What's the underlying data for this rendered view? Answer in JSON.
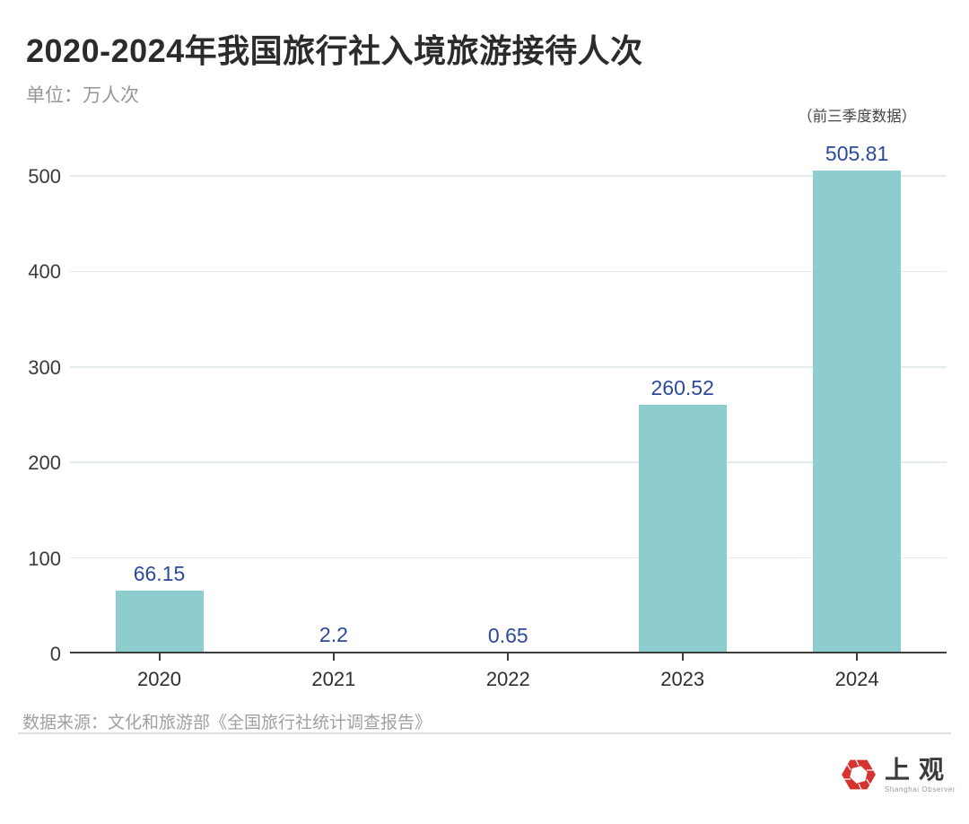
{
  "header": {
    "title": "2020-2024年我国旅行社入境旅游接待人次",
    "unit": "单位：万人次"
  },
  "chart_data": {
    "type": "bar",
    "title": "2020-2024年我国旅行社入境旅游接待人次",
    "unit": "万人次",
    "categories": [
      "2020",
      "2021",
      "2022",
      "2023",
      "2024"
    ],
    "values": [
      66.15,
      2.2,
      0.65,
      260.52,
      505.81
    ],
    "value_labels": [
      "66.15",
      "2.2",
      "0.65",
      "260.52",
      "505.81"
    ],
    "annotation": "（前三季度数据）",
    "annotation_target_index": 4,
    "xlabel": "",
    "ylabel": "万人次",
    "ylim": [
      0,
      500
    ],
    "yticks": [
      0,
      100,
      200,
      300,
      400,
      500
    ],
    "grid": "horizontal",
    "legend": "none",
    "colors": {
      "bar": "#8ecdcd",
      "value_label": "#2b4a9d",
      "gridline": "#e4eceb",
      "axis": "#3d3d3d"
    }
  },
  "footer": {
    "source": "数据来源：文化和旅游部《全国旅行社统计调查报告》",
    "logo_cn": "上观",
    "logo_en": "Shanghai Observer",
    "logo_color": "#d5332f"
  }
}
